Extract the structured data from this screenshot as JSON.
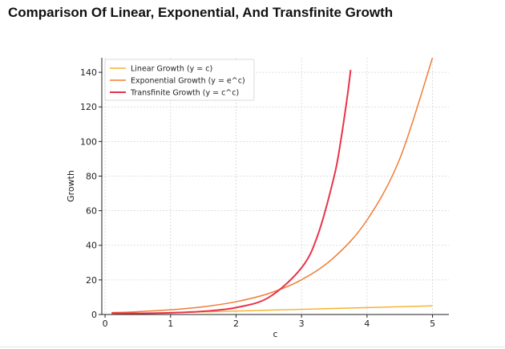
{
  "page": {
    "title": "Comparison Of Linear, Exponential, And Transfinite Growth"
  },
  "chart_data": {
    "type": "line",
    "title": "",
    "xlabel": "c",
    "ylabel": "Growth",
    "xlim": [
      -0.05,
      5.25
    ],
    "ylim": [
      0,
      148.4
    ],
    "x_ticks": [
      0,
      1,
      2,
      3,
      4,
      5
    ],
    "y_ticks": [
      0,
      20,
      40,
      60,
      80,
      100,
      120,
      140
    ],
    "grid": true,
    "grid_style": "dashed",
    "legend_position": "top-left",
    "series": [
      {
        "name": "Linear Growth (y = c)",
        "color": "#f5b12a",
        "x": [
          0.1,
          1,
          2,
          3,
          4,
          5
        ],
        "values": [
          0.1,
          1,
          2,
          3,
          4,
          5
        ]
      },
      {
        "name": "Exponential Growth (y = e^c)",
        "color": "#f07d36",
        "x": [
          0.1,
          0.5,
          1,
          1.5,
          2,
          2.5,
          3,
          3.5,
          4,
          4.5,
          5
        ],
        "values": [
          1.11,
          1.65,
          2.72,
          4.48,
          7.39,
          12.18,
          20.09,
          33.12,
          54.6,
          90.02,
          148.41
        ]
      },
      {
        "name": "Transfinite Growth (y = c^c)",
        "color": "#e8344a",
        "x": [
          0.1,
          0.5,
          1,
          1.5,
          2,
          2.5,
          3,
          3.25,
          3.5,
          3.6,
          3.7,
          3.75
        ],
        "values": [
          0.79,
          0.71,
          1,
          1.84,
          4,
          9.88,
          27,
          46.1,
          80.2,
          100.7,
          126.3,
          141.4
        ]
      }
    ]
  }
}
